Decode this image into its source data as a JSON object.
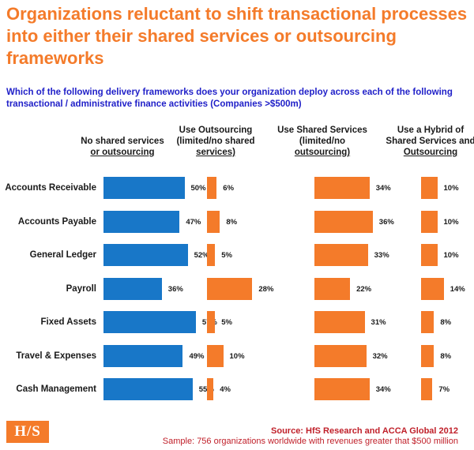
{
  "title": "Organizations reluctant to shift transactional processes into either their shared services or outsourcing frameworks",
  "subtitle": "Which of the following delivery frameworks does your organization deploy across each of the following transactional / administrative finance activities (Companies >$500m)",
  "colors": {
    "title": "#F47B2A",
    "subtitle": "#1F1FC8",
    "blue": "#1877C8",
    "orange": "#F47B2A",
    "source": "#C0202A"
  },
  "chart_data": {
    "type": "bar",
    "orientation": "horizontal",
    "categories": [
      "Accounts Receivable",
      "Accounts Payable",
      "General Ledger",
      "Payroll",
      "Fixed Assets",
      "Travel & Expenses",
      "Cash Management"
    ],
    "series": [
      {
        "name_line1": "No shared services",
        "name_line2": "or outsourcing",
        "name_line3": "",
        "color": "#1877C8",
        "values": [
          50,
          47,
          52,
          36,
          57,
          49,
          55
        ]
      },
      {
        "name_line1": "Use Outsourcing",
        "name_line2": "(limited/no shared",
        "name_line3": "services)",
        "color": "#F47B2A",
        "values": [
          6,
          8,
          5,
          28,
          5,
          10,
          4
        ]
      },
      {
        "name_line1": "Use Shared Services",
        "name_line2": "(limited/no",
        "name_line3": "outsourcing)",
        "color": "#F47B2A",
        "values": [
          34,
          36,
          33,
          22,
          31,
          32,
          34
        ]
      },
      {
        "name_line1": "Use a Hybrid of",
        "name_line2": "Shared Services and",
        "name_line3": "Outsourcing",
        "color": "#F47B2A",
        "values": [
          10,
          10,
          10,
          14,
          8,
          8,
          7
        ]
      }
    ],
    "value_suffix": "%"
  },
  "footer": {
    "logo": "H/S",
    "source": "Source: HfS Research and ACCA Global 2012",
    "sample": "Sample: 756 organizations worldwide with revenues greater that $500 million"
  }
}
